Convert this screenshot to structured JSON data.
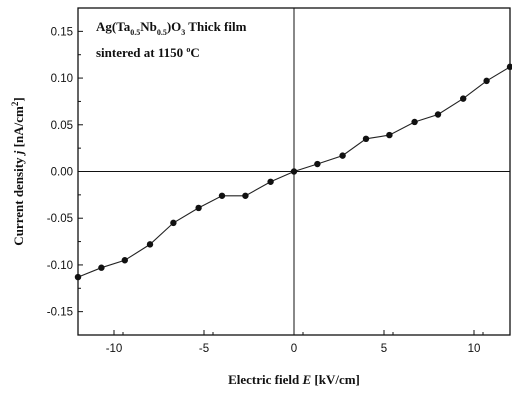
{
  "chart_data": {
    "type": "line",
    "xlabel": {
      "pre": "Electric field ",
      "var": "E",
      "post": " [kV/cm]"
    },
    "ylabel": {
      "pre": "Current density ",
      "var": "j",
      "post": " [nA/cm",
      "sup": "2",
      "close": "]"
    },
    "annotation": {
      "line1": {
        "a": "Ag(Ta",
        "s1": "0.5",
        "b": "Nb",
        "s2": "0.5",
        "c": ")O",
        "s3": "3",
        "d": " Thick film"
      },
      "line2": {
        "a": "sintered at 1150 ",
        "deg": "o",
        "b": "C"
      }
    },
    "xlim": [
      -12,
      12
    ],
    "ylim": [
      -0.175,
      0.175
    ],
    "xticks": [
      -10,
      -5,
      0,
      5,
      10
    ],
    "xtick_labels": [
      "-10",
      "-5",
      "0",
      "5",
      "10"
    ],
    "yticks": [
      -0.15,
      -0.1,
      -0.05,
      0.0,
      0.05,
      0.1,
      0.15
    ],
    "ytick_labels": [
      "-0.15",
      "-0.10",
      "-0.05",
      "0.00",
      "0.05",
      "0.10",
      "0.15"
    ],
    "grid": false,
    "legend": false,
    "series": [
      {
        "marker": "circle",
        "x": [
          -12.0,
          -10.7,
          -9.4,
          -8.0,
          -6.7,
          -5.3,
          -4.0,
          -2.7,
          -1.3,
          0.0,
          1.3,
          2.7,
          4.0,
          5.3,
          6.7,
          8.0,
          9.4,
          10.7,
          12.0
        ],
        "y": [
          -0.113,
          -0.103,
          -0.095,
          -0.078,
          -0.055,
          -0.039,
          -0.026,
          -0.026,
          -0.011,
          0.0,
          0.008,
          0.017,
          0.035,
          0.039,
          0.053,
          0.061,
          0.078,
          0.097,
          0.112
        ]
      }
    ]
  }
}
